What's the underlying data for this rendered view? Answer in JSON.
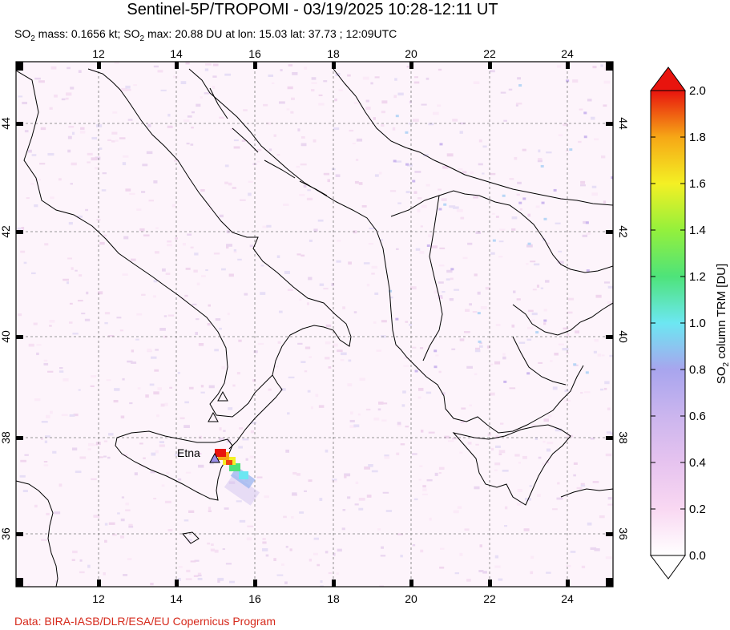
{
  "title": "Sentinel-5P/TROPOMI - 03/19/2025 10:28-12:11 UT",
  "subtitle": {
    "mass_prefix": "SO",
    "mass_sub": "2",
    "mass_text": " mass: 0.1656 kt; SO",
    "max_sub": "2",
    "max_text": " max: 20.88 DU at lon: 15.03 lat: 37.73 ; 12:09UTC"
  },
  "credit": "Data: BIRA-IASB/DLR/ESA/EU Copernicus Program",
  "map": {
    "lon_ticks": [
      "12",
      "14",
      "16",
      "18",
      "20",
      "22",
      "24"
    ],
    "lat_ticks": [
      "44",
      "42",
      "40",
      "38",
      "36"
    ],
    "volcano_label": "Etna",
    "volcano_lon": 15.0,
    "volcano_lat": 37.73
  },
  "colorbar": {
    "tick_labels": [
      "2.0",
      "1.8",
      "1.6",
      "1.4",
      "1.2",
      "1.0",
      "0.8",
      "0.6",
      "0.4",
      "0.2",
      "0.0"
    ],
    "axis_label_prefix": "SO",
    "axis_label_sub": "2",
    "axis_label_suffix": " column TRM [DU]",
    "colors": [
      "#ffffff",
      "#f9d8f2",
      "#d8b7ec",
      "#9ea6ef",
      "#6ce7f2",
      "#4ee37a",
      "#94f03c",
      "#f4f024",
      "#f6a716",
      "#ee4412",
      "#cc0000"
    ]
  }
}
